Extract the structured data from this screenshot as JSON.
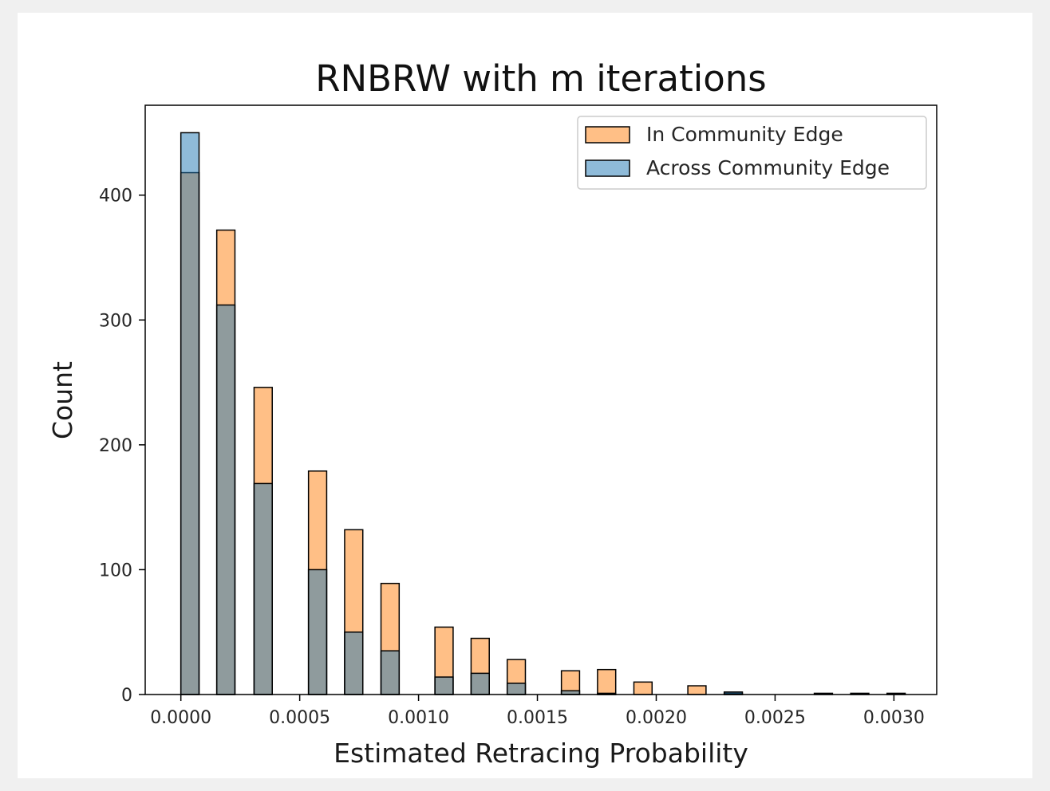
{
  "chart_data": {
    "type": "bar",
    "title": "RNBRW with m iterations",
    "xlabel": "Estimated Retracing Probability",
    "ylabel": "Count",
    "xlim": [
      -0.00015,
      0.00318
    ],
    "ylim": [
      0,
      472
    ],
    "xticks": [
      {
        "value": 0.0,
        "label": "0.0000"
      },
      {
        "value": 0.0005,
        "label": "0.0005"
      },
      {
        "value": 0.001,
        "label": "0.0010"
      },
      {
        "value": 0.0015,
        "label": "0.0015"
      },
      {
        "value": 0.002,
        "label": "0.0020"
      },
      {
        "value": 0.0025,
        "label": "0.0025"
      },
      {
        "value": 0.003,
        "label": "0.0030"
      }
    ],
    "yticks": [
      {
        "value": 0,
        "label": "0"
      },
      {
        "value": 100,
        "label": "100"
      },
      {
        "value": 200,
        "label": "200"
      },
      {
        "value": 300,
        "label": "300"
      },
      {
        "value": 400,
        "label": "400"
      }
    ],
    "bin_width": 7.65e-05,
    "bin_starts": [
      0.0,
      0.000151,
      0.000308,
      0.000537,
      0.000689,
      0.000842,
      0.001069,
      0.001221,
      0.001373,
      0.001601,
      0.001753,
      0.001906,
      0.002133,
      0.002286,
      0.002665,
      0.002818,
      0.002971
    ],
    "legend_position": "upper right",
    "grid": false,
    "series": [
      {
        "name": "In Community Edge",
        "color": "#ff7f0e",
        "values": [
          418,
          372,
          246,
          179,
          132,
          89,
          54,
          45,
          28,
          19,
          20,
          10,
          7,
          1,
          0,
          0,
          0
        ]
      },
      {
        "name": "Across Community Edge",
        "color": "#1f77b4",
        "values": [
          450,
          312,
          169,
          100,
          50,
          35,
          14,
          17,
          9,
          3,
          1,
          0,
          0,
          2,
          1,
          1,
          1
        ]
      }
    ]
  }
}
